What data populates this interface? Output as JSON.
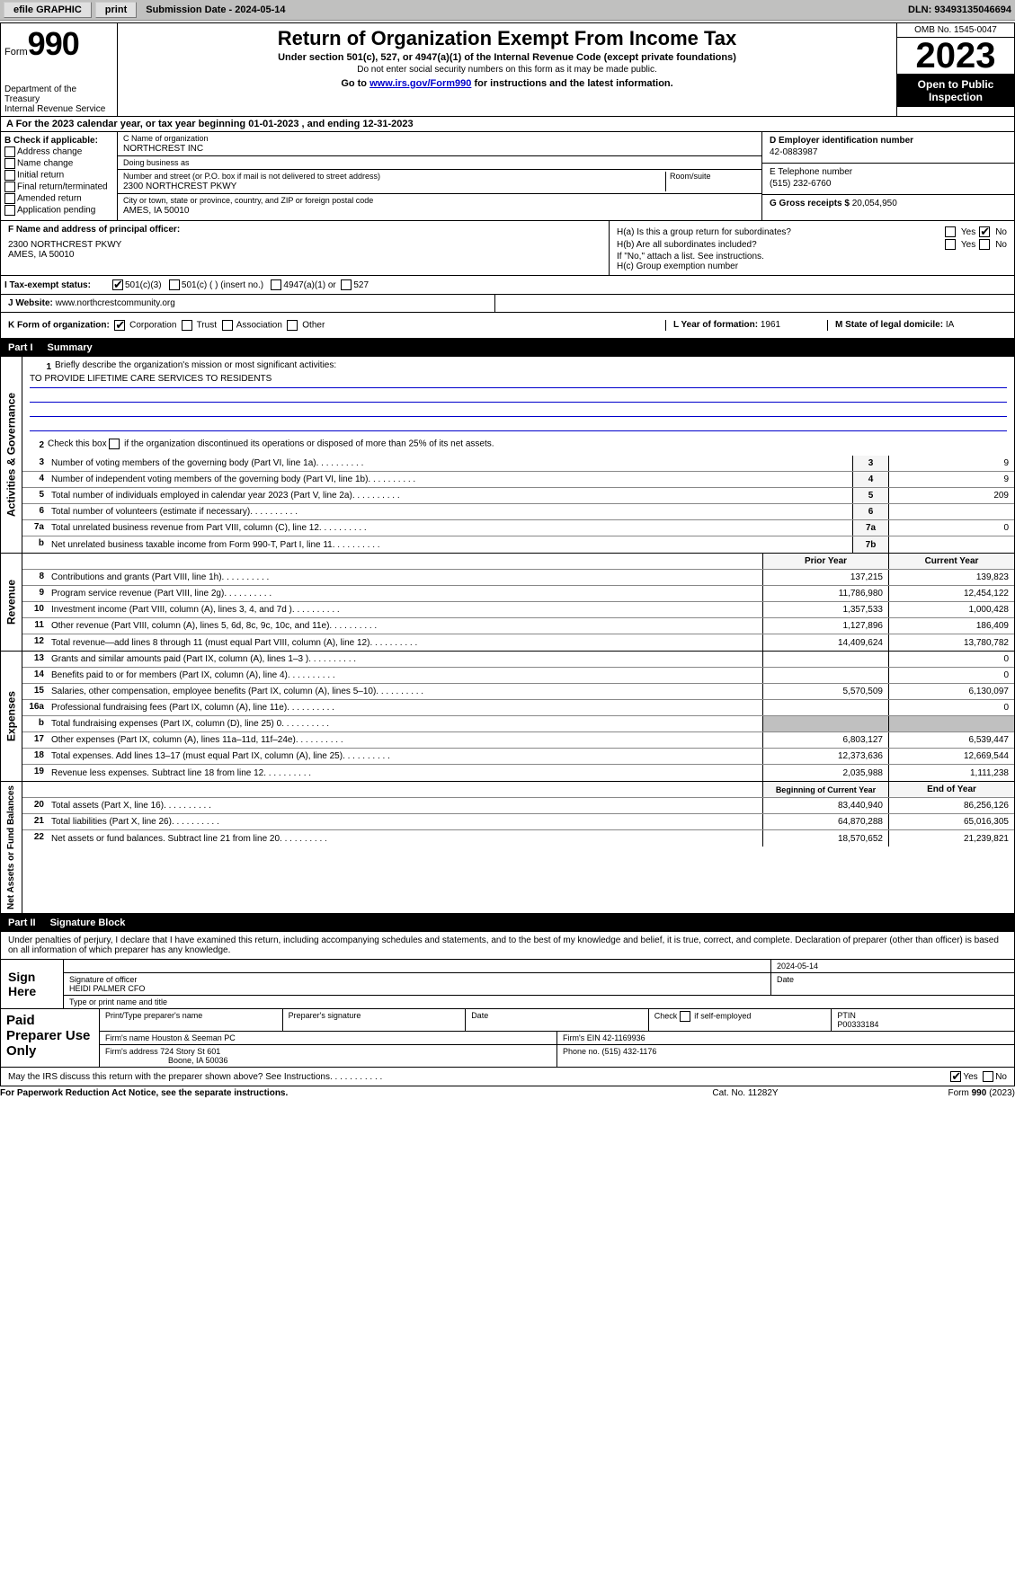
{
  "toolbar": {
    "efile": "efile GRAPHIC",
    "print": "print",
    "sub_label": "Submission Date - 2024-05-14",
    "dln": "DLN: 93493135046694"
  },
  "header": {
    "form_word": "Form",
    "form_num": "990",
    "title": "Return of Organization Exempt From Income Tax",
    "subtitle": "Under section 501(c), 527, or 4947(a)(1) of the Internal Revenue Code (except private foundations)",
    "note": "Do not enter social security numbers on this form as it may be made public.",
    "goto_prefix": "Go to ",
    "goto_link": "www.irs.gov/Form990",
    "goto_suffix": " for instructions and the latest information.",
    "dept": "Department of the Treasury",
    "irs": "Internal Revenue Service",
    "omb": "OMB No. 1545-0047",
    "year": "2023",
    "open_public": "Open to Public Inspection"
  },
  "calendar": {
    "text_a": "A For the 2023 calendar year, or tax year beginning ",
    "begin": "01-01-2023",
    "mid": "  , and ending ",
    "end": "12-31-2023"
  },
  "sectionB": {
    "label": "B Check if applicable:",
    "opts": [
      "Address change",
      "Name change",
      "Initial return",
      "Final return/terminated",
      "Amended return",
      "Application pending"
    ]
  },
  "org": {
    "name_label": "C Name of organization",
    "name": "NORTHCREST INC",
    "dba_label": "Doing business as",
    "dba": "",
    "addr_label": "Number and street (or P.O. box if mail is not delivered to street address)",
    "room_label": "Room/suite",
    "addr": "2300 NORTHCREST PKWY",
    "city_label": "City or town, state or province, country, and ZIP or foreign postal code",
    "city": "AMES, IA  50010",
    "officer_label": "F  Name and address of principal officer:",
    "officer_addr1": "2300 NORTHCREST PKWY",
    "officer_addr2": "AMES, IA  50010"
  },
  "sideD": {
    "ein_label": "D Employer identification number",
    "ein": "42-0883987",
    "tel_label": "E Telephone number",
    "tel": "(515) 232-6760",
    "gross_label": "G Gross receipts $",
    "gross": "20,054,950"
  },
  "sideH": {
    "ha": "H(a)  Is this a group return for subordinates?",
    "hb": "H(b)  Are all subordinates included?",
    "hb_note": "If \"No,\" attach a list. See instructions.",
    "hc": "H(c)  Group exemption number ",
    "yes": "Yes",
    "no": "No"
  },
  "taxStatus": {
    "label_i": "I  Tax-exempt status:",
    "opt1": "501(c)(3)",
    "opt2": "501(c) (  ) (insert no.)",
    "opt3": "4947(a)(1) or",
    "opt4": "527",
    "label_j": "J  Website: ",
    "website": "www.northcrestcommunity.org"
  },
  "formK": {
    "label": "K Form of organization:",
    "corp": "Corporation",
    "trust": "Trust",
    "assoc": "Association",
    "other": "Other",
    "l_label": "L Year of formation: ",
    "l_val": "1961",
    "m_label": "M State of legal domicile: ",
    "m_val": "IA"
  },
  "part1": {
    "header_num": "Part I",
    "header_title": "Summary",
    "vlabel1": "Activities & Governance",
    "vlabel2": "Revenue",
    "vlabel3": "Expenses",
    "vlabel4": "Net Assets or Fund Balances",
    "line1": "Briefly describe the organization's mission or most significant activities:",
    "mission": "TO PROVIDE LIFETIME CARE SERVICES TO RESIDENTS",
    "line2": "Check this box       if the organization discontinued its operations or disposed of more than 25% of its net assets.",
    "lines_gov": [
      {
        "n": "3",
        "t": "Number of voting members of the governing body (Part VI, line 1a)",
        "b": "3",
        "v": "9"
      },
      {
        "n": "4",
        "t": "Number of independent voting members of the governing body (Part VI, line 1b)",
        "b": "4",
        "v": "9"
      },
      {
        "n": "5",
        "t": "Total number of individuals employed in calendar year 2023 (Part V, line 2a)",
        "b": "5",
        "v": "209"
      },
      {
        "n": "6",
        "t": "Total number of volunteers (estimate if necessary)",
        "b": "6",
        "v": ""
      },
      {
        "n": "7a",
        "t": "Total unrelated business revenue from Part VIII, column (C), line 12",
        "b": "7a",
        "v": "0"
      },
      {
        "n": "b",
        "t": "Net unrelated business taxable income from Form 990-T, Part I, line 11",
        "b": "7b",
        "v": ""
      }
    ],
    "prior_year": "Prior Year",
    "current_year": "Current Year",
    "lines_rev": [
      {
        "n": "8",
        "t": "Contributions and grants (Part VIII, line 1h)",
        "p": "137,215",
        "c": "139,823"
      },
      {
        "n": "9",
        "t": "Program service revenue (Part VIII, line 2g)",
        "p": "11,786,980",
        "c": "12,454,122"
      },
      {
        "n": "10",
        "t": "Investment income (Part VIII, column (A), lines 3, 4, and 7d )",
        "p": "1,357,533",
        "c": "1,000,428"
      },
      {
        "n": "11",
        "t": "Other revenue (Part VIII, column (A), lines 5, 6d, 8c, 9c, 10c, and 11e)",
        "p": "1,127,896",
        "c": "186,409"
      },
      {
        "n": "12",
        "t": "Total revenue—add lines 8 through 11 (must equal Part VIII, column (A), line 12)",
        "p": "14,409,624",
        "c": "13,780,782"
      }
    ],
    "lines_exp": [
      {
        "n": "13",
        "t": "Grants and similar amounts paid (Part IX, column (A), lines 1–3 )",
        "p": "",
        "c": "0"
      },
      {
        "n": "14",
        "t": "Benefits paid to or for members (Part IX, column (A), line 4)",
        "p": "",
        "c": "0"
      },
      {
        "n": "15",
        "t": "Salaries, other compensation, employee benefits (Part IX, column (A), lines 5–10)",
        "p": "5,570,509",
        "c": "6,130,097"
      },
      {
        "n": "16a",
        "t": "Professional fundraising fees (Part IX, column (A), line 11e)",
        "p": "",
        "c": "0"
      },
      {
        "n": "b",
        "t": "Total fundraising expenses (Part IX, column (D), line 25) 0",
        "p": "GREY",
        "c": "GREY"
      },
      {
        "n": "17",
        "t": "Other expenses (Part IX, column (A), lines 11a–11d, 11f–24e)",
        "p": "6,803,127",
        "c": "6,539,447"
      },
      {
        "n": "18",
        "t": "Total expenses. Add lines 13–17 (must equal Part IX, column (A), line 25)",
        "p": "12,373,636",
        "c": "12,669,544"
      },
      {
        "n": "19",
        "t": "Revenue less expenses. Subtract line 18 from line 12",
        "p": "2,035,988",
        "c": "1,111,238"
      }
    ],
    "begin_year": "Beginning of Current Year",
    "end_year": "End of Year",
    "lines_net": [
      {
        "n": "20",
        "t": "Total assets (Part X, line 16)",
        "p": "83,440,940",
        "c": "86,256,126"
      },
      {
        "n": "21",
        "t": "Total liabilities (Part X, line 26)",
        "p": "64,870,288",
        "c": "65,016,305"
      },
      {
        "n": "22",
        "t": "Net assets or fund balances. Subtract line 21 from line 20",
        "p": "18,570,652",
        "c": "21,239,821"
      }
    ]
  },
  "part2": {
    "header_num": "Part II",
    "header_title": "Signature Block",
    "declaration": "Under penalties of perjury, I declare that I have examined this return, including accompanying schedules and statements, and to the best of my knowledge and belief, it is true, correct, and complete. Declaration of preparer (other than officer) is based on all information of which preparer has any knowledge.",
    "sign_here": "Sign Here",
    "sig_officer_label": "Signature of officer",
    "sig_officer": "HEIDI PALMER  CFO",
    "sig_type_label": "Type or print name and title",
    "date_label": "Date",
    "date_val": "2024-05-14",
    "paid": "Paid Preparer Use Only",
    "prep_name_label": "Print/Type preparer's name",
    "prep_sig_label": "Preparer's signature",
    "prep_date_label": "Date",
    "self_emp": "Check       if self-employed",
    "ptin_label": "PTIN",
    "ptin": "P00333184",
    "firm_name_label": "Firm's name   ",
    "firm_name": "Houston & Seeman PC",
    "firm_ein_label": "Firm's EIN  ",
    "firm_ein": "42-1169936",
    "firm_addr_label": "Firm's address ",
    "firm_addr1": "724 Story St 601",
    "firm_addr2": "Boone, IA  50036",
    "phone_label": "Phone no. ",
    "phone": "(515) 432-1176",
    "discuss": "May the IRS discuss this return with the preparer shown above? See Instructions.",
    "yes": "Yes",
    "no": "No"
  },
  "footer": {
    "left": "For Paperwork Reduction Act Notice, see the separate instructions.",
    "mid": "Cat. No. 11282Y",
    "right": "Form 990 (2023)"
  }
}
